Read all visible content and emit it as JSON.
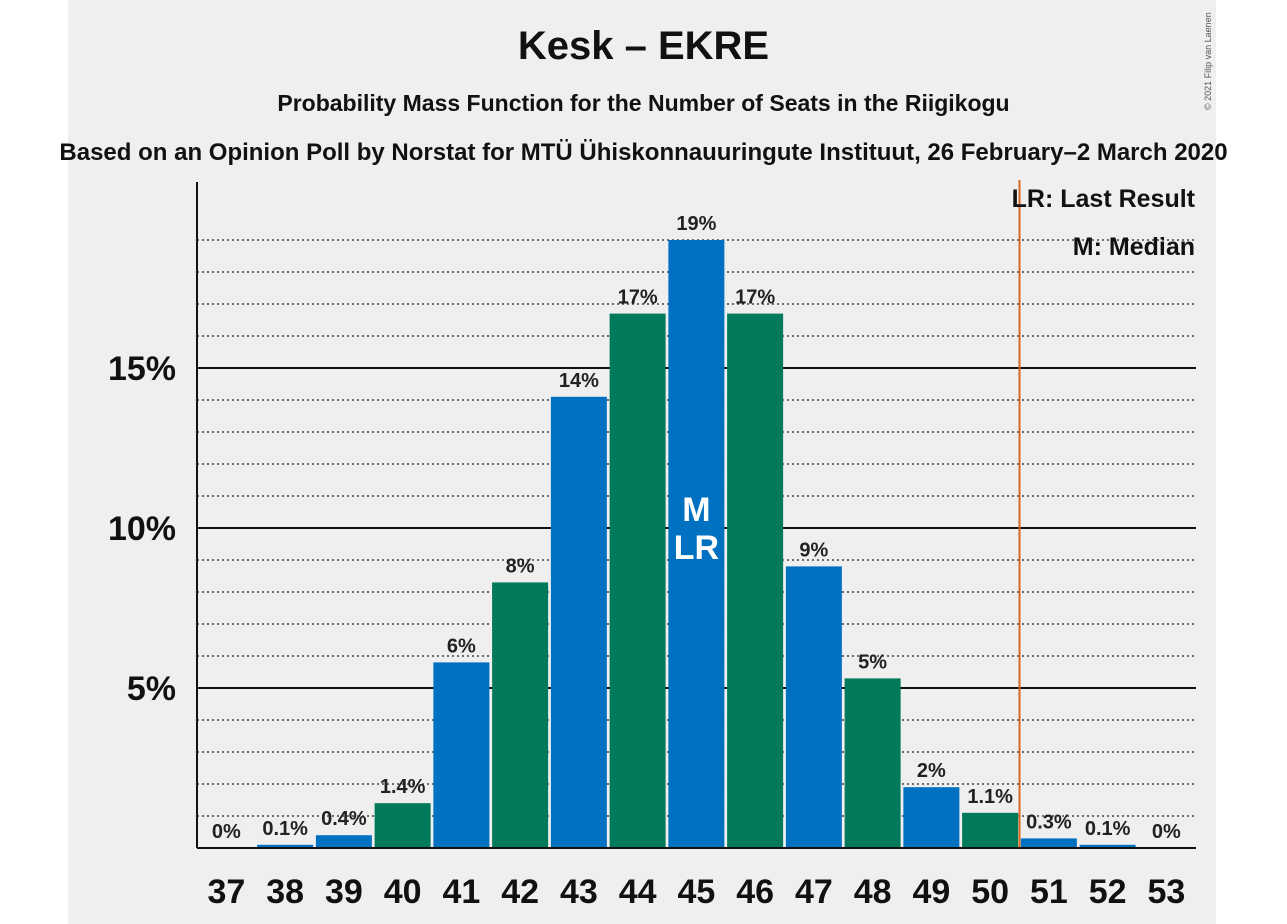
{
  "header": {
    "title": "Kesk – EKRE",
    "subtitle": "Probability Mass Function for the Number of Seats in the Riigikogu",
    "source": "Based on an Opinion Poll by Norstat for MTÜ Ühiskonnauuringute Instituut, 26 February–2 March 2020",
    "copyright": "© 2021 Filip van Laenen"
  },
  "legend": {
    "last_result": "LR: Last Result",
    "median": "M: Median"
  },
  "chart_data": {
    "type": "bar",
    "categories": [
      "37",
      "38",
      "39",
      "40",
      "41",
      "42",
      "43",
      "44",
      "45",
      "46",
      "47",
      "48",
      "49",
      "50",
      "51",
      "52",
      "53"
    ],
    "values": [
      0,
      0.1,
      0.4,
      1.4,
      5.8,
      8.3,
      14.1,
      16.7,
      19.0,
      16.7,
      8.8,
      5.3,
      1.9,
      1.1,
      0.3,
      0.1,
      0
    ],
    "data_labels": [
      "0%",
      "0.1%",
      "0.4%",
      "1.4%",
      "6%",
      "8%",
      "14%",
      "17%",
      "19%",
      "17%",
      "9%",
      "5%",
      "2%",
      "1.1%",
      "0.3%",
      "0.1%",
      "0%"
    ],
    "ylim": [
      0,
      20.8
    ],
    "yticks": [
      5,
      10,
      15
    ],
    "ytick_labels": [
      "5%",
      "10%",
      "15%"
    ],
    "minor_gridlines": [
      1,
      2,
      3,
      4,
      6,
      7,
      8,
      9,
      11,
      12,
      13,
      14,
      16,
      17,
      18,
      19
    ],
    "last_result_seat": 50.5,
    "median_seat": "45",
    "median_marker": "M",
    "last_result_marker": "LR",
    "marker_seat": "45",
    "colors": {
      "blue": "#0070c0",
      "green": "#007a5a",
      "last_result_line": "#d9661f"
    },
    "bar_colors": [
      "blue",
      "blue",
      "blue",
      "green",
      "blue",
      "green",
      "blue",
      "green",
      "blue",
      "green",
      "blue",
      "green",
      "blue",
      "green",
      "blue",
      "blue",
      "blue"
    ]
  }
}
